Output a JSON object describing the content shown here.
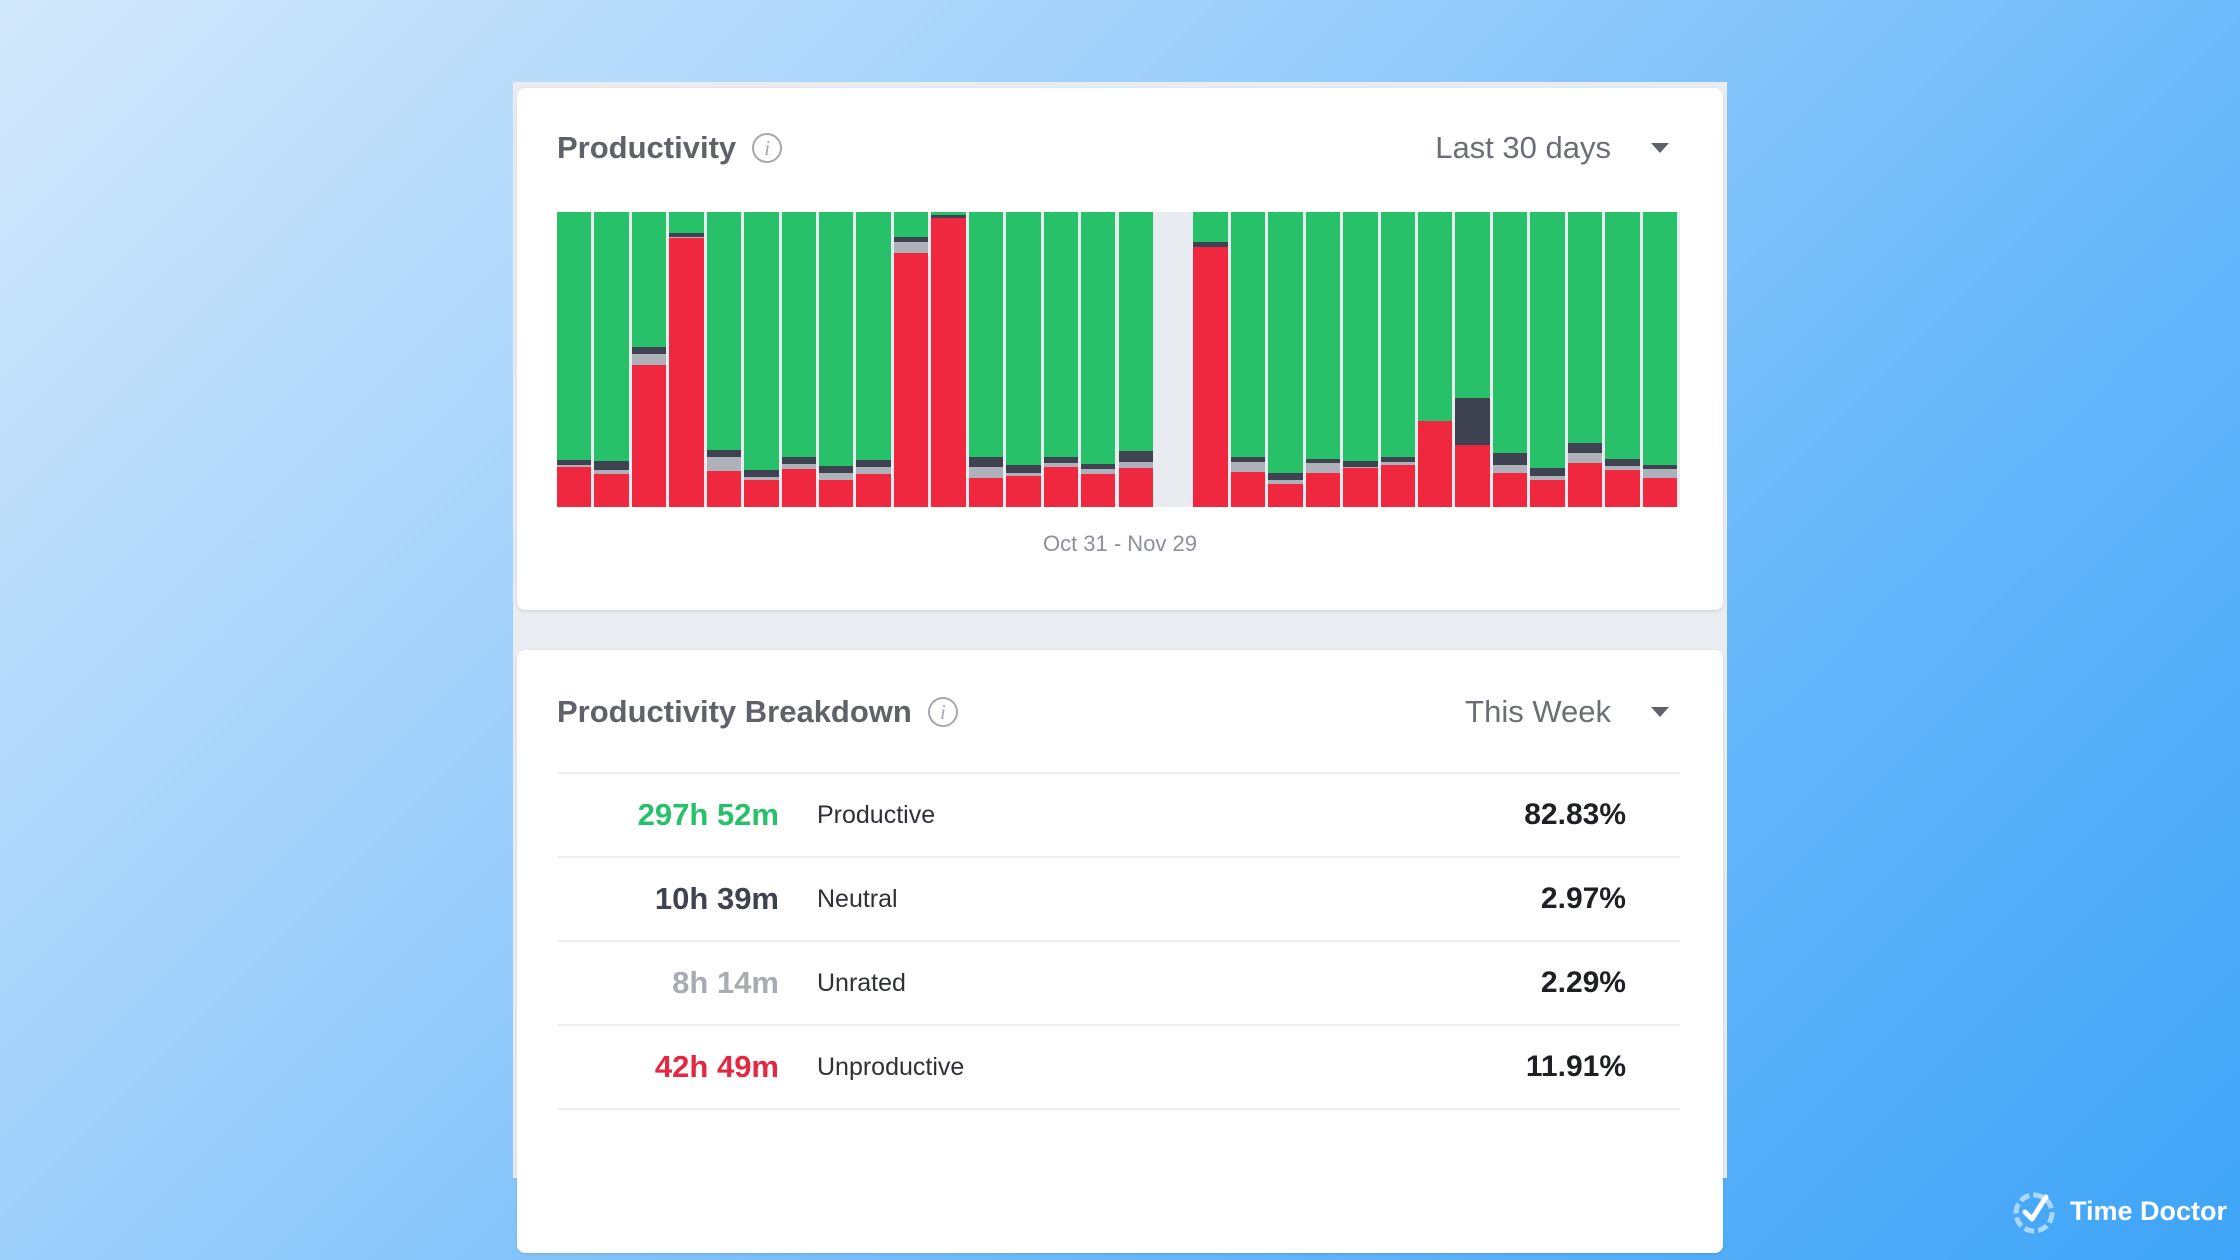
{
  "productivity": {
    "title": "Productivity",
    "range_select": "Last 30 days",
    "date_range": "Oct 31 - Nov 29"
  },
  "chart_data": {
    "type": "bar",
    "stacked": true,
    "normalized_percent": true,
    "colors": {
      "unproductive": "#f0283f",
      "unrated": "#aeb0ba",
      "neutral": "#3f4250",
      "productive": "#27c16a",
      "empty": "#e8ebf0"
    },
    "series_order_bottom_up": [
      "unproductive",
      "unrated",
      "neutral",
      "productive"
    ],
    "bars": [
      [
        13.4,
        0.9,
        1.8
      ],
      [
        11.1,
        1.4,
        3.0
      ],
      [
        48.0,
        4.0,
        2.3
      ],
      [
        91.1,
        0.3,
        1.4
      ],
      [
        12.3,
        4.8,
        2.3
      ],
      [
        9.3,
        0.9,
        2.3
      ],
      [
        12.8,
        1.7,
        2.5
      ],
      [
        9.1,
        2.3,
        2.4
      ],
      [
        11.1,
        2.3,
        2.6
      ],
      [
        86.0,
        3.7,
        1.9
      ],
      [
        98.0,
        0,
        1.1
      ],
      [
        10.0,
        3.4,
        3.6
      ],
      [
        10.6,
        1.1,
        2.5
      ],
      [
        13.4,
        1.4,
        2.3
      ],
      [
        11.1,
        1.9,
        1.5
      ],
      [
        13.2,
        2.2,
        3.7
      ],
      null,
      [
        88.3,
        0,
        1.4
      ],
      [
        12.0,
        3.1,
        2.0
      ],
      [
        7.7,
        1.4,
        2.4
      ],
      [
        11.7,
        3.1,
        1.5
      ],
      [
        13.2,
        0.5,
        2.0
      ],
      [
        14.2,
        0.9,
        1.7
      ],
      [
        29.3,
        0,
        0
      ],
      [
        21.1,
        0,
        15.9
      ],
      [
        11.7,
        2.6,
        4.0
      ],
      [
        9.3,
        1.2,
        2.8
      ],
      [
        14.9,
        3.4,
        3.3
      ],
      [
        12.5,
        1.5,
        2.3
      ],
      [
        10.0,
        2.8,
        1.4
      ]
    ]
  },
  "breakdown": {
    "title": "Productivity Breakdown",
    "range_select": "This Week",
    "rows": [
      {
        "time": "297h 52m",
        "label": "Productive",
        "percent": "82.83%",
        "color": "#27c16a"
      },
      {
        "time": "10h 39m",
        "label": "Neutral",
        "percent": "2.97%",
        "color": "#3f4250"
      },
      {
        "time": "8h 14m",
        "label": "Unrated",
        "percent": "2.29%",
        "color": "#a9abb3"
      },
      {
        "time": "42h 49m",
        "label": "Unproductive",
        "percent": "11.91%",
        "color": "#e3283f"
      }
    ]
  },
  "brand": {
    "name": "Time Doctor",
    "icon": "clock-check-icon"
  },
  "info_glyph": "i"
}
